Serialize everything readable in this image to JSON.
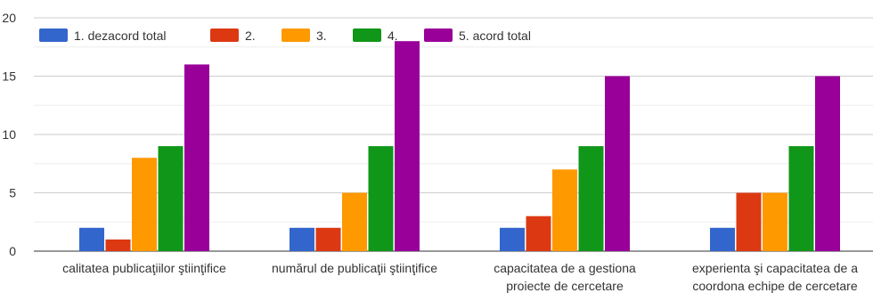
{
  "chart_data": {
    "type": "bar",
    "categories": [
      [
        "calitatea publicaţiilor ştiinţifice"
      ],
      [
        "numărul de publicaţii ştiinţifice"
      ],
      [
        "capacitatea de a gestiona",
        "proiecte de cercetare"
      ],
      [
        "experienta şi capacitatea de a",
        "coordona echipe de cercetare"
      ]
    ],
    "series": [
      {
        "name": "1. dezacord total",
        "color": "#3366cc",
        "values": [
          2,
          2,
          2,
          2
        ]
      },
      {
        "name": "2.",
        "color": "#dc3912",
        "values": [
          1,
          2,
          3,
          5
        ]
      },
      {
        "name": "3.",
        "color": "#ff9900",
        "values": [
          8,
          5,
          7,
          5
        ]
      },
      {
        "name": "4.",
        "color": "#109618",
        "values": [
          9,
          9,
          9,
          9
        ]
      },
      {
        "name": "5. acord total",
        "color": "#990099",
        "values": [
          16,
          18,
          15,
          15
        ]
      }
    ],
    "yticks": [
      "0",
      "5",
      "10",
      "15",
      "20"
    ],
    "ylim": [
      0,
      20
    ],
    "grid": true,
    "legend_position": "top-left"
  }
}
